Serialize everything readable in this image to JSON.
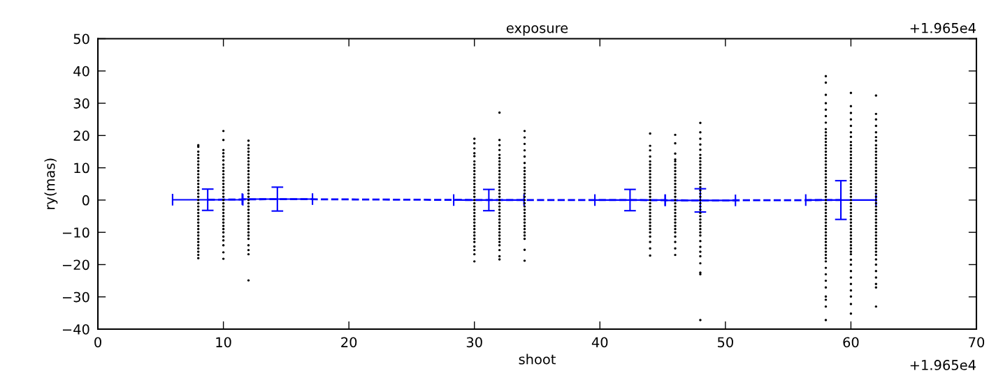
{
  "chart_data": {
    "type": "scatter",
    "title": "exposure",
    "xlabel": "shoot",
    "ylabel": "ry(mas)",
    "annotations": [
      "+1.965e4",
      "+1.965e4"
    ],
    "xlim": [
      0,
      70
    ],
    "xticks": [
      0,
      10,
      20,
      30,
      40,
      50,
      60,
      70
    ],
    "ylim": [
      -40,
      50
    ],
    "yticks": [
      {
        "value": -40,
        "label": "−40"
      },
      {
        "value": -30,
        "label": "−30"
      },
      {
        "value": -20,
        "label": "−20"
      },
      {
        "value": -10,
        "label": "−10"
      },
      0,
      10,
      20,
      30,
      40,
      50
    ],
    "grid": false,
    "marker": "circle",
    "series": [
      {
        "type": "scatter",
        "color": "#000000",
        "x": [
          8,
          8,
          8,
          8,
          8,
          8,
          8,
          8,
          8,
          8,
          8,
          8,
          8,
          8,
          8,
          8,
          8,
          8,
          8,
          8,
          8,
          8,
          8,
          8,
          8,
          8,
          8,
          8,
          8,
          8,
          8,
          8,
          8,
          8,
          8,
          8
        ],
        "values": [
          17,
          16.5,
          15,
          14,
          13,
          12,
          11,
          10,
          9,
          8,
          7,
          6,
          5,
          4,
          3,
          2,
          1,
          0,
          -1,
          -2,
          -3,
          -4,
          -5,
          -6,
          -7,
          -8,
          -9,
          -10,
          -11,
          -12,
          -13,
          -14,
          -15,
          -16,
          -17,
          -18
        ]
      },
      {
        "type": "scatter",
        "color": "#000000",
        "x": [
          10,
          10,
          10,
          10,
          10,
          10,
          10,
          10,
          10,
          10,
          10,
          10,
          10,
          10,
          10,
          10,
          10,
          10,
          10,
          10,
          10,
          10,
          10,
          10,
          10,
          10,
          10,
          10,
          10,
          10,
          10,
          10,
          10
        ],
        "values": [
          21.4,
          18.6,
          15.5,
          14.5,
          13.5,
          12.3,
          11,
          10,
          9,
          8,
          7,
          6,
          5,
          4,
          3,
          2,
          1,
          0,
          -1,
          -2,
          -3,
          -4,
          -5,
          -6,
          -7,
          -8,
          -9,
          -10,
          -11.3,
          -12.5,
          -14,
          -16.2,
          -18.2
        ]
      },
      {
        "type": "scatter",
        "color": "#000000",
        "x": [
          12,
          12,
          12,
          12,
          12,
          12,
          12,
          12,
          12,
          12,
          12,
          12,
          12,
          12,
          12,
          12,
          12,
          12,
          12,
          12,
          12,
          12,
          12,
          12,
          12,
          12,
          12,
          12,
          12,
          12,
          12,
          12,
          12,
          12,
          12
        ],
        "values": [
          18.4,
          17,
          16,
          15,
          14,
          13,
          12,
          11,
          10,
          9,
          8,
          7,
          6,
          5,
          4,
          3,
          2,
          1,
          0,
          -1,
          -2,
          -3,
          -4,
          -5,
          -6,
          -7,
          -8,
          -9,
          -10,
          -11,
          -12,
          -14,
          -15.5,
          -16.8,
          -24.9
        ]
      },
      {
        "type": "scatter",
        "color": "#000000",
        "x": [
          30,
          30,
          30,
          30,
          30,
          30,
          30,
          30,
          30,
          30,
          30,
          30,
          30,
          30,
          30,
          30,
          30,
          30,
          30,
          30,
          30,
          30,
          30,
          30,
          30,
          30,
          30,
          30,
          30,
          30,
          30,
          30,
          30,
          30,
          30
        ],
        "values": [
          19,
          17.6,
          16,
          14.5,
          13.6,
          12,
          11,
          10,
          9,
          8,
          7,
          6,
          5,
          4,
          3,
          2,
          1,
          0,
          -1,
          -2,
          -3,
          -4,
          -5,
          -6,
          -7,
          -8,
          -9,
          -10,
          -11,
          -12,
          -13,
          -14.4,
          -15.5,
          -16.8,
          -19
        ]
      },
      {
        "type": "scatter",
        "color": "#000000",
        "x": [
          32,
          32,
          32,
          32,
          32,
          32,
          32,
          32,
          32,
          32,
          32,
          32,
          32,
          32,
          32,
          32,
          32,
          32,
          32,
          32,
          32,
          32,
          32,
          32,
          32,
          32,
          32,
          32,
          32,
          32,
          32,
          32,
          32,
          32,
          32,
          32
        ],
        "values": [
          27.1,
          18.6,
          17,
          15.5,
          14,
          13,
          12,
          11,
          10,
          9,
          8,
          7,
          6,
          5,
          4,
          3,
          2,
          1,
          0,
          -1,
          -2,
          -3,
          -4,
          -5,
          -6,
          -7,
          -8,
          -9,
          -10,
          -11,
          -12,
          -13,
          -14,
          -15.5,
          -17.4,
          -18.4
        ]
      },
      {
        "type": "scatter",
        "color": "#000000",
        "x": [
          34,
          34,
          34,
          34,
          34,
          34,
          34,
          34,
          34,
          34,
          34,
          34,
          34,
          34,
          34,
          34,
          34,
          34,
          34,
          34,
          34,
          34,
          34,
          34,
          34,
          34,
          34,
          34,
          34,
          34,
          34
        ],
        "values": [
          21.4,
          19.4,
          17.4,
          15.4,
          13.5,
          11.5,
          10,
          9,
          8,
          7,
          6,
          5,
          4,
          3,
          2,
          1,
          0,
          -1,
          -2,
          -3,
          -4,
          -5,
          -6,
          -7,
          -8,
          -9,
          -10,
          -11,
          -12,
          -15.4,
          -18.8
        ]
      },
      {
        "type": "scatter",
        "color": "#000000",
        "x": [
          44,
          44,
          44,
          44,
          44,
          44,
          44,
          44,
          44,
          44,
          44,
          44,
          44,
          44,
          44,
          44,
          44,
          44,
          44,
          44,
          44,
          44,
          44,
          44,
          44,
          44,
          44,
          44,
          44,
          44,
          44
        ],
        "values": [
          20.6,
          16.8,
          15.4,
          13.5,
          12,
          11,
          10,
          9,
          8,
          7,
          6,
          5,
          4,
          3,
          2,
          1,
          0,
          -1,
          -2,
          -3,
          -4,
          -5,
          -6,
          -7,
          -8,
          -9,
          -10,
          -11.3,
          -13,
          -15,
          -17.2
        ]
      },
      {
        "type": "scatter",
        "color": "#000000",
        "x": [
          46,
          46,
          46,
          46,
          46,
          46,
          46,
          46,
          46,
          46,
          46,
          46,
          46,
          46,
          46,
          46,
          46,
          46,
          46,
          46,
          46,
          46,
          46,
          46,
          46,
          46,
          46,
          46,
          46,
          46,
          46
        ],
        "values": [
          20.2,
          17.6,
          14.4,
          12.6,
          12,
          11,
          10,
          9,
          8,
          7,
          6,
          5,
          4,
          3,
          2,
          1,
          0,
          -1,
          -2,
          -3,
          -4,
          -5,
          -6,
          -7,
          -8,
          -9,
          -10,
          -11.3,
          -13,
          -15,
          -17
        ]
      },
      {
        "type": "scatter",
        "color": "#000000",
        "x": [
          48,
          48,
          48,
          48,
          48,
          48,
          48,
          48,
          48,
          48,
          48,
          48,
          48,
          48,
          48,
          48,
          48,
          48,
          48,
          48,
          48,
          48,
          48,
          48,
          48,
          48,
          48,
          48,
          48,
          48,
          48,
          48,
          48,
          48,
          48,
          48,
          48,
          48,
          48
        ],
        "values": [
          23.9,
          21,
          19,
          17.2,
          15.6,
          14,
          13,
          12,
          11,
          10,
          9,
          8,
          7,
          6,
          5,
          4,
          3,
          2,
          1,
          0,
          -1,
          -2,
          -3,
          -4,
          -5,
          -6,
          -7,
          -8,
          -9,
          -10,
          -11,
          -12.7,
          -14.5,
          -16,
          -17.4,
          -19.6,
          -22.5,
          -23,
          -37.2
        ]
      },
      {
        "type": "scatter",
        "color": "#000000",
        "x": [
          58,
          58,
          58,
          58,
          58,
          58,
          58,
          58,
          58,
          58,
          58,
          58,
          58,
          58,
          58,
          58,
          58,
          58,
          58,
          58,
          58,
          58,
          58,
          58,
          58,
          58,
          58,
          58,
          58,
          58,
          58,
          58,
          58,
          58,
          58,
          58,
          58,
          58,
          58,
          58,
          58,
          58,
          58,
          58,
          58,
          58,
          58,
          58,
          58,
          58,
          58,
          58,
          58,
          58,
          58,
          58,
          58
        ],
        "values": [
          38.4,
          36.4,
          32.6,
          30,
          28,
          26,
          24,
          22,
          21,
          20,
          19,
          18,
          17,
          16,
          15,
          14,
          13,
          12,
          11,
          10,
          9,
          8,
          7,
          6,
          5,
          4,
          3,
          2,
          1,
          0,
          -1,
          -2,
          -3,
          -4,
          -5,
          -6,
          -7,
          -8,
          -9,
          -10,
          -11,
          -12,
          -13,
          -14,
          -15,
          -16,
          -17,
          -18,
          -19,
          -21,
          -23,
          -25,
          -27.1,
          -29.9,
          -30.9,
          -33,
          -37.2
        ]
      },
      {
        "type": "scatter",
        "color": "#000000",
        "x": [
          60,
          60,
          60,
          60,
          60,
          60,
          60,
          60,
          60,
          60,
          60,
          60,
          60,
          60,
          60,
          60,
          60,
          60,
          60,
          60,
          60,
          60,
          60,
          60,
          60,
          60,
          60,
          60,
          60,
          60,
          60,
          60,
          60,
          60,
          60,
          60,
          60,
          60,
          60,
          60,
          60,
          60,
          60,
          60,
          60,
          60,
          60,
          60,
          60,
          60,
          60,
          60
        ],
        "values": [
          33.2,
          29.1,
          27,
          25,
          23,
          21,
          19.6,
          18,
          17,
          16,
          15,
          14,
          13,
          12,
          11,
          10,
          9,
          8,
          7,
          6,
          5,
          4,
          3,
          2,
          1,
          0,
          -1,
          -2,
          -3,
          -4,
          -5,
          -6,
          -7,
          -8,
          -9,
          -10,
          -11,
          -12,
          -13,
          -14,
          -15,
          -16,
          -16.8,
          -18.5,
          -20,
          -22,
          -24,
          -26,
          -28,
          -29.9,
          -32.2,
          -35.2
        ]
      },
      {
        "type": "scatter",
        "color": "#000000",
        "x": [
          62,
          62,
          62,
          62,
          62,
          62,
          62,
          62,
          62,
          62,
          62,
          62,
          62,
          62,
          62,
          62,
          62,
          62,
          62,
          62,
          62,
          62,
          62,
          62,
          62,
          62,
          62,
          62,
          62,
          62,
          62,
          62,
          62,
          62,
          62,
          62,
          62,
          62,
          62,
          62,
          62,
          62,
          62,
          62,
          62,
          62,
          62,
          62,
          62
        ],
        "values": [
          32.4,
          26.7,
          25,
          23,
          21,
          19.5,
          18.4,
          17,
          16,
          15,
          14,
          13,
          12,
          11,
          10,
          9,
          8,
          7,
          6,
          5,
          4,
          3,
          2,
          1,
          0,
          -1,
          -2,
          -3,
          -4,
          -5,
          -6,
          -7,
          -8,
          -9,
          -10,
          -11,
          -12,
          -13,
          -14,
          -15,
          -16,
          -17,
          -18.4,
          -20,
          -22,
          -24,
          -26,
          -27.1,
          -33
        ]
      },
      {
        "type": "line",
        "color": "#0000ff",
        "line_style": "dashed",
        "marker": "none",
        "x": [
          8.75,
          14.3,
          31.15,
          42.4,
          48.0,
          59.2
        ],
        "values": [
          0.1,
          0.3,
          0,
          0,
          -0.1,
          0
        ],
        "errors": [
          3.3,
          3.7,
          3.3,
          3.3,
          3.6,
          6.0
        ],
        "xerrors": [
          2.8,
          2.8,
          2.8,
          2.8,
          2.8,
          2.8
        ]
      }
    ]
  }
}
